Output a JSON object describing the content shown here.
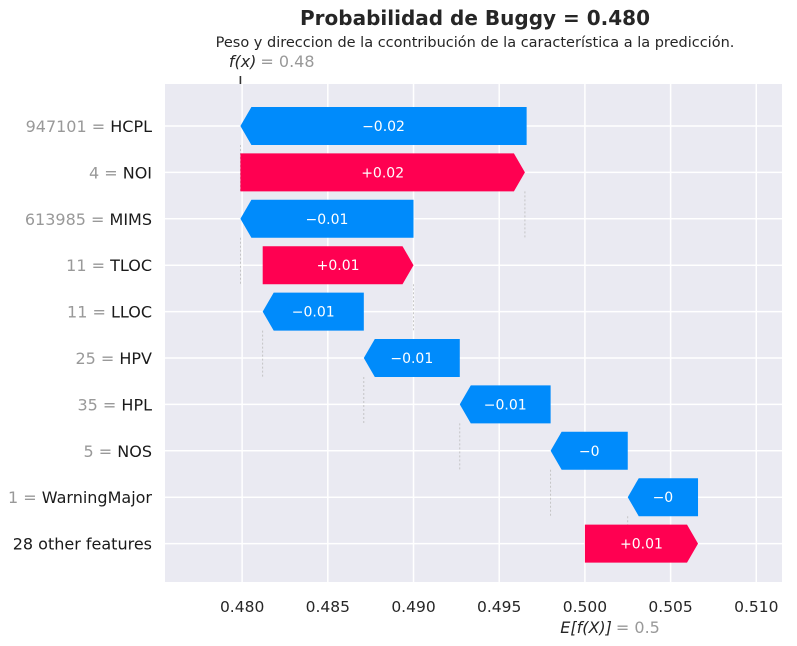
{
  "chart_data": {
    "type": "waterfall",
    "title": "Probabilidad de Buggy = 0.480",
    "subtitle": "Peso y direccion de la ccontribución de la característica a la predicción.",
    "fx": {
      "label": "f(x)",
      "value_text": " = 0.48",
      "value": 0.4799
    },
    "base": {
      "label": "E[f(X)]",
      "value_text": " = 0.5",
      "value": 0.5
    },
    "xlim": [
      0.4755,
      0.5115
    ],
    "xticks": [
      0.48,
      0.485,
      0.49,
      0.495,
      0.5,
      0.505,
      0.51
    ],
    "xtick_labels": [
      "0.480",
      "0.485",
      "0.490",
      "0.495",
      "0.500",
      "0.505",
      "0.510"
    ],
    "colors": {
      "positive": "#ff0051",
      "negative": "#008bfb",
      "background": "#eaeaf2",
      "grid": "#ffffff"
    },
    "features": [
      {
        "value": "947101",
        "name": "HCPL",
        "start": 0.4966,
        "end": 0.4799,
        "label": "−0.02"
      },
      {
        "value": "4",
        "name": "NOI",
        "start": 0.4799,
        "end": 0.4965,
        "label": "+0.02"
      },
      {
        "value": "613985",
        "name": "MIMS",
        "start": 0.49,
        "end": 0.4799,
        "label": "−0.01"
      },
      {
        "value": "11",
        "name": "TLOC",
        "start": 0.4812,
        "end": 0.49,
        "label": "+0.01"
      },
      {
        "value": "11",
        "name": "LLOC",
        "start": 0.4871,
        "end": 0.4812,
        "label": "−0.01"
      },
      {
        "value": "25",
        "name": "HPV",
        "start": 0.4927,
        "end": 0.4871,
        "label": "−0.01"
      },
      {
        "value": "35",
        "name": "HPL",
        "start": 0.498,
        "end": 0.4927,
        "label": "−0.01"
      },
      {
        "value": "5",
        "name": "NOS",
        "start": 0.5025,
        "end": 0.498,
        "label": "−0"
      },
      {
        "value": "1",
        "name": "WarningMajor",
        "start": 0.5066,
        "end": 0.5025,
        "label": "−0"
      },
      {
        "value": "",
        "name": "28 other features",
        "start": 0.5,
        "end": 0.5066,
        "label": "+0.01"
      }
    ]
  }
}
